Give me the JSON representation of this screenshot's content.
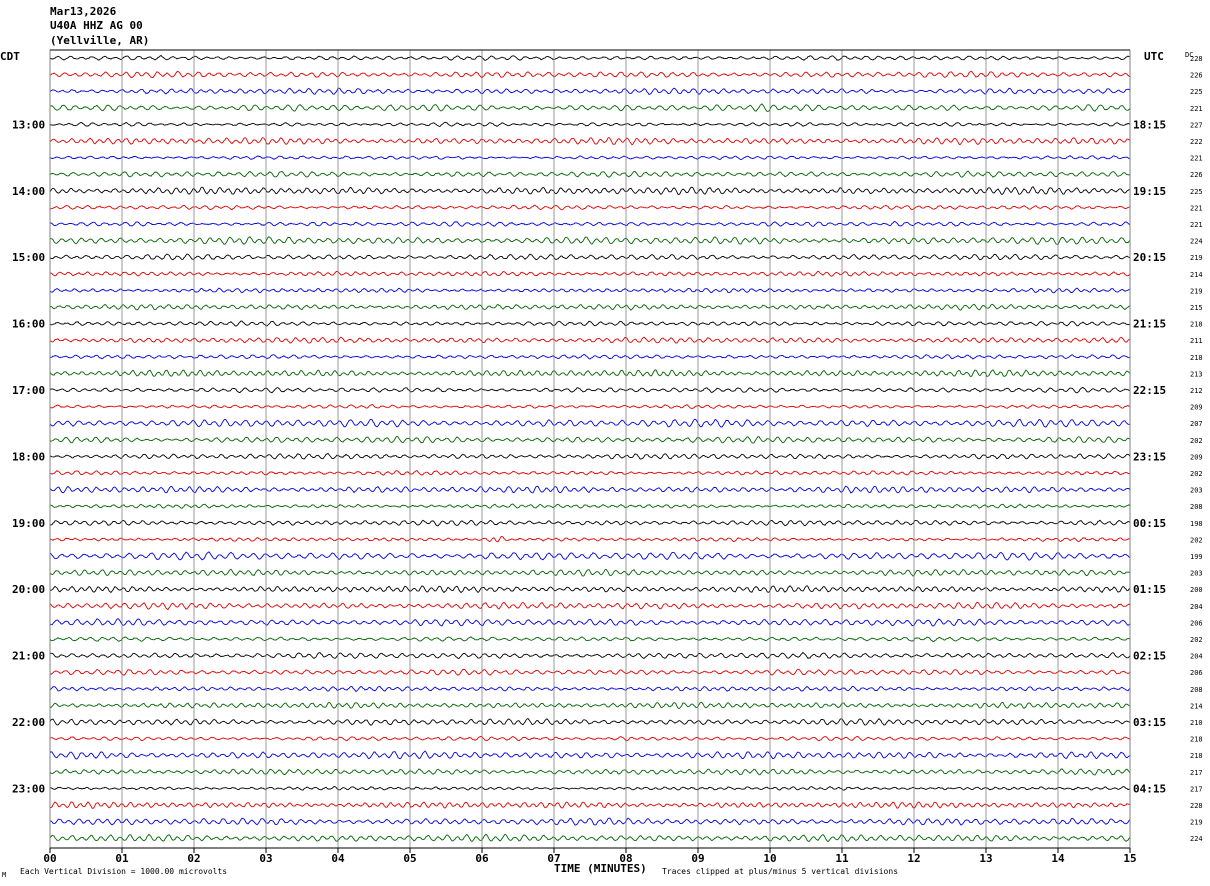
{
  "header": {
    "date": "Mar13,2026",
    "station": "U40A HHZ AG 00",
    "location": "(Yellville, AR)"
  },
  "chart_data": {
    "type": "line",
    "left_timezone_label": "CDT",
    "right_timezone_label": "UTC",
    "dc_header": "DC",
    "xlabel": "TIME (MINUTES)",
    "x_ticks": [
      "00",
      "01",
      "02",
      "03",
      "04",
      "05",
      "06",
      "07",
      "08",
      "09",
      "10",
      "11",
      "12",
      "13",
      "14",
      "15"
    ],
    "xlim": [
      0,
      15
    ],
    "left_hour_labels": [
      "13:00",
      "14:00",
      "15:00",
      "16:00",
      "17:00",
      "18:00",
      "19:00",
      "20:00",
      "21:00",
      "22:00",
      "23:00"
    ],
    "right_hour_labels": [
      "18:15",
      "19:15",
      "20:15",
      "21:15",
      "22:15",
      "23:15",
      "00:15",
      "01:15",
      "02:15",
      "03:15",
      "04:15"
    ],
    "dc_offsets": [
      228,
      226,
      225,
      221,
      227,
      222,
      221,
      226,
      225,
      221,
      221,
      224,
      219,
      214,
      219,
      215,
      218,
      211,
      218,
      213,
      212,
      209,
      207,
      202,
      209,
      202,
      203,
      208,
      198,
      202,
      199,
      203,
      200,
      204,
      206,
      202,
      204,
      206,
      208,
      214,
      210,
      218,
      218,
      217,
      217,
      228,
      219,
      224
    ],
    "trace_colors": [
      "#000000",
      "#e00000",
      "#0000e0",
      "#006400"
    ],
    "events": [
      {
        "trace_index": 29,
        "minute": 6.2,
        "amplitude": 3.2
      },
      {
        "trace_index": 10,
        "minute": 11.7,
        "amplitude": 1.4
      },
      {
        "trace_index": 41,
        "minute": 8.05,
        "amplitude": 1.5
      }
    ],
    "scale_note": "Each Vertical Division = 1000.00 microvolts",
    "clip_note": "Traces clipped at plus/minus 5 vertical divisions",
    "grid": true
  },
  "footer": {
    "corner_mark": "M"
  }
}
